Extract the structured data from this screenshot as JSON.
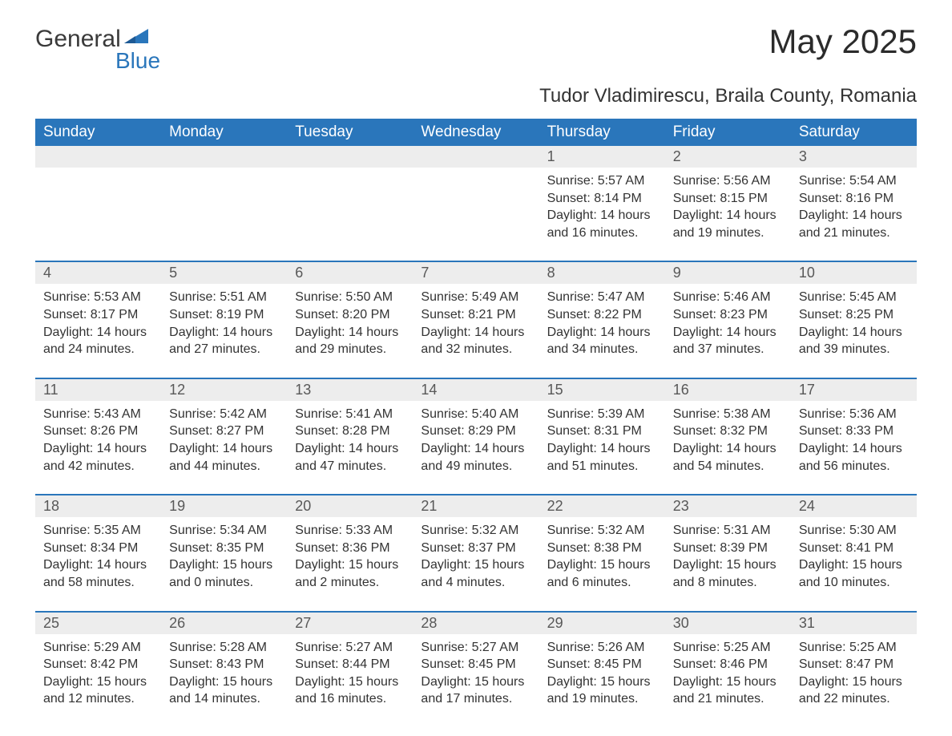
{
  "brand": {
    "word1": "General",
    "word2": "Blue"
  },
  "title": "May 2025",
  "location": "Tudor Vladimirescu, Braila County, Romania",
  "colors": {
    "header_bg": "#2a76bb",
    "header_text": "#ffffff",
    "daynum_bg": "#ededed",
    "daynum_text": "#585858",
    "body_text": "#333333",
    "page_bg": "#ffffff",
    "logo_blue": "#2a76bb",
    "logo_gray": "#3a3a3a"
  },
  "fonts": {
    "title_size_pt": 32,
    "location_size_pt": 18,
    "header_size_pt": 14,
    "body_size_pt": 12
  },
  "weekdays": [
    "Sunday",
    "Monday",
    "Tuesday",
    "Wednesday",
    "Thursday",
    "Friday",
    "Saturday"
  ],
  "weeks": [
    [
      null,
      null,
      null,
      null,
      {
        "n": "1",
        "sr": "Sunrise: 5:57 AM",
        "ss": "Sunset: 8:14 PM",
        "d1": "Daylight: 14 hours",
        "d2": "and 16 minutes."
      },
      {
        "n": "2",
        "sr": "Sunrise: 5:56 AM",
        "ss": "Sunset: 8:15 PM",
        "d1": "Daylight: 14 hours",
        "d2": "and 19 minutes."
      },
      {
        "n": "3",
        "sr": "Sunrise: 5:54 AM",
        "ss": "Sunset: 8:16 PM",
        "d1": "Daylight: 14 hours",
        "d2": "and 21 minutes."
      }
    ],
    [
      {
        "n": "4",
        "sr": "Sunrise: 5:53 AM",
        "ss": "Sunset: 8:17 PM",
        "d1": "Daylight: 14 hours",
        "d2": "and 24 minutes."
      },
      {
        "n": "5",
        "sr": "Sunrise: 5:51 AM",
        "ss": "Sunset: 8:19 PM",
        "d1": "Daylight: 14 hours",
        "d2": "and 27 minutes."
      },
      {
        "n": "6",
        "sr": "Sunrise: 5:50 AM",
        "ss": "Sunset: 8:20 PM",
        "d1": "Daylight: 14 hours",
        "d2": "and 29 minutes."
      },
      {
        "n": "7",
        "sr": "Sunrise: 5:49 AM",
        "ss": "Sunset: 8:21 PM",
        "d1": "Daylight: 14 hours",
        "d2": "and 32 minutes."
      },
      {
        "n": "8",
        "sr": "Sunrise: 5:47 AM",
        "ss": "Sunset: 8:22 PM",
        "d1": "Daylight: 14 hours",
        "d2": "and 34 minutes."
      },
      {
        "n": "9",
        "sr": "Sunrise: 5:46 AM",
        "ss": "Sunset: 8:23 PM",
        "d1": "Daylight: 14 hours",
        "d2": "and 37 minutes."
      },
      {
        "n": "10",
        "sr": "Sunrise: 5:45 AM",
        "ss": "Sunset: 8:25 PM",
        "d1": "Daylight: 14 hours",
        "d2": "and 39 minutes."
      }
    ],
    [
      {
        "n": "11",
        "sr": "Sunrise: 5:43 AM",
        "ss": "Sunset: 8:26 PM",
        "d1": "Daylight: 14 hours",
        "d2": "and 42 minutes."
      },
      {
        "n": "12",
        "sr": "Sunrise: 5:42 AM",
        "ss": "Sunset: 8:27 PM",
        "d1": "Daylight: 14 hours",
        "d2": "and 44 minutes."
      },
      {
        "n": "13",
        "sr": "Sunrise: 5:41 AM",
        "ss": "Sunset: 8:28 PM",
        "d1": "Daylight: 14 hours",
        "d2": "and 47 minutes."
      },
      {
        "n": "14",
        "sr": "Sunrise: 5:40 AM",
        "ss": "Sunset: 8:29 PM",
        "d1": "Daylight: 14 hours",
        "d2": "and 49 minutes."
      },
      {
        "n": "15",
        "sr": "Sunrise: 5:39 AM",
        "ss": "Sunset: 8:31 PM",
        "d1": "Daylight: 14 hours",
        "d2": "and 51 minutes."
      },
      {
        "n": "16",
        "sr": "Sunrise: 5:38 AM",
        "ss": "Sunset: 8:32 PM",
        "d1": "Daylight: 14 hours",
        "d2": "and 54 minutes."
      },
      {
        "n": "17",
        "sr": "Sunrise: 5:36 AM",
        "ss": "Sunset: 8:33 PM",
        "d1": "Daylight: 14 hours",
        "d2": "and 56 minutes."
      }
    ],
    [
      {
        "n": "18",
        "sr": "Sunrise: 5:35 AM",
        "ss": "Sunset: 8:34 PM",
        "d1": "Daylight: 14 hours",
        "d2": "and 58 minutes."
      },
      {
        "n": "19",
        "sr": "Sunrise: 5:34 AM",
        "ss": "Sunset: 8:35 PM",
        "d1": "Daylight: 15 hours",
        "d2": "and 0 minutes."
      },
      {
        "n": "20",
        "sr": "Sunrise: 5:33 AM",
        "ss": "Sunset: 8:36 PM",
        "d1": "Daylight: 15 hours",
        "d2": "and 2 minutes."
      },
      {
        "n": "21",
        "sr": "Sunrise: 5:32 AM",
        "ss": "Sunset: 8:37 PM",
        "d1": "Daylight: 15 hours",
        "d2": "and 4 minutes."
      },
      {
        "n": "22",
        "sr": "Sunrise: 5:32 AM",
        "ss": "Sunset: 8:38 PM",
        "d1": "Daylight: 15 hours",
        "d2": "and 6 minutes."
      },
      {
        "n": "23",
        "sr": "Sunrise: 5:31 AM",
        "ss": "Sunset: 8:39 PM",
        "d1": "Daylight: 15 hours",
        "d2": "and 8 minutes."
      },
      {
        "n": "24",
        "sr": "Sunrise: 5:30 AM",
        "ss": "Sunset: 8:41 PM",
        "d1": "Daylight: 15 hours",
        "d2": "and 10 minutes."
      }
    ],
    [
      {
        "n": "25",
        "sr": "Sunrise: 5:29 AM",
        "ss": "Sunset: 8:42 PM",
        "d1": "Daylight: 15 hours",
        "d2": "and 12 minutes."
      },
      {
        "n": "26",
        "sr": "Sunrise: 5:28 AM",
        "ss": "Sunset: 8:43 PM",
        "d1": "Daylight: 15 hours",
        "d2": "and 14 minutes."
      },
      {
        "n": "27",
        "sr": "Sunrise: 5:27 AM",
        "ss": "Sunset: 8:44 PM",
        "d1": "Daylight: 15 hours",
        "d2": "and 16 minutes."
      },
      {
        "n": "28",
        "sr": "Sunrise: 5:27 AM",
        "ss": "Sunset: 8:45 PM",
        "d1": "Daylight: 15 hours",
        "d2": "and 17 minutes."
      },
      {
        "n": "29",
        "sr": "Sunrise: 5:26 AM",
        "ss": "Sunset: 8:45 PM",
        "d1": "Daylight: 15 hours",
        "d2": "and 19 minutes."
      },
      {
        "n": "30",
        "sr": "Sunrise: 5:25 AM",
        "ss": "Sunset: 8:46 PM",
        "d1": "Daylight: 15 hours",
        "d2": "and 21 minutes."
      },
      {
        "n": "31",
        "sr": "Sunrise: 5:25 AM",
        "ss": "Sunset: 8:47 PM",
        "d1": "Daylight: 15 hours",
        "d2": "and 22 minutes."
      }
    ]
  ]
}
